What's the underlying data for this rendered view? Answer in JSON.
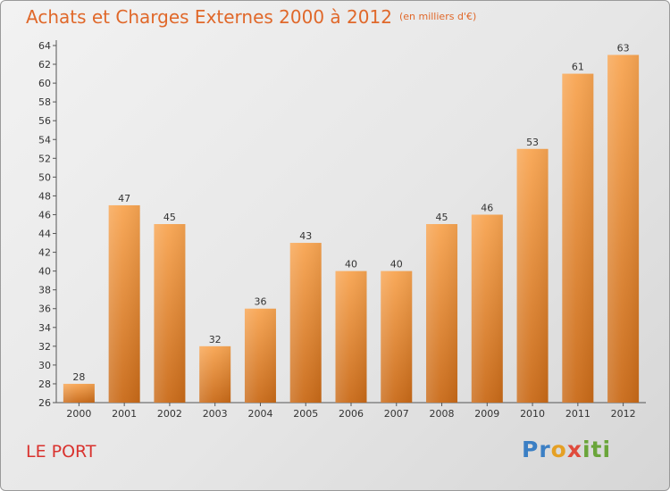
{
  "chart_data": {
    "type": "bar",
    "title": "Achats et Charges Externes 2000 à 2012",
    "subtitle": "(en milliers d'€)",
    "categories": [
      "2000",
      "2001",
      "2002",
      "2003",
      "2004",
      "2005",
      "2006",
      "2007",
      "2008",
      "2009",
      "2010",
      "2011",
      "2012"
    ],
    "values": [
      28,
      47,
      45,
      32,
      36,
      43,
      40,
      40,
      45,
      46,
      53,
      61,
      63
    ],
    "ylim": [
      26,
      64
    ],
    "ytick_step": 2,
    "grid": false,
    "bar_color_top": "#f8a552",
    "bar_color_bottom": "#c96a18"
  },
  "footer": {
    "place": "LE PORT",
    "logo_parts": [
      "Pr",
      "o",
      "x",
      "iti"
    ]
  }
}
